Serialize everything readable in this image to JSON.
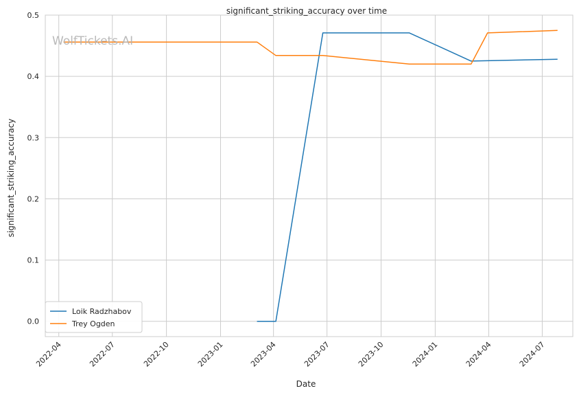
{
  "chart_data": {
    "type": "line",
    "title": "significant_striking_accuracy over time",
    "xlabel": "Date",
    "ylabel": "significant_striking_accuracy",
    "watermark": "WolfTickets.AI",
    "grid": true,
    "legend_position": "lower-left",
    "xlim": [
      "2022-03-09",
      "2024-08-22"
    ],
    "ylim": [
      -0.025,
      0.5
    ],
    "x_ticks": [
      "2022-04",
      "2022-07",
      "2022-10",
      "2023-01",
      "2023-04",
      "2023-07",
      "2023-10",
      "2024-01",
      "2024-04",
      "2024-07"
    ],
    "y_ticks": [
      "0.0",
      "0.1",
      "0.2",
      "0.3",
      "0.4",
      "0.5"
    ],
    "series": [
      {
        "name": "Loik Radzhabov",
        "color": "#1f77b4",
        "points": [
          {
            "x": "2023-03-04",
            "y": 0.0
          },
          {
            "x": "2023-04-05",
            "y": 0.0
          },
          {
            "x": "2023-06-24",
            "y": 0.471
          },
          {
            "x": "2023-11-18",
            "y": 0.471
          },
          {
            "x": "2024-03-02",
            "y": 0.425
          },
          {
            "x": "2024-07-27",
            "y": 0.428
          }
        ]
      },
      {
        "name": "Trey Ogden",
        "color": "#ff7f0e",
        "points": [
          {
            "x": "2022-04-09",
            "y": 0.456
          },
          {
            "x": "2023-03-04",
            "y": 0.456
          },
          {
            "x": "2023-04-05",
            "y": 0.434
          },
          {
            "x": "2023-06-24",
            "y": 0.434
          },
          {
            "x": "2023-11-18",
            "y": 0.42
          },
          {
            "x": "2024-03-02",
            "y": 0.42
          },
          {
            "x": "2024-03-30",
            "y": 0.471
          },
          {
            "x": "2024-07-27",
            "y": 0.475
          }
        ]
      }
    ]
  }
}
